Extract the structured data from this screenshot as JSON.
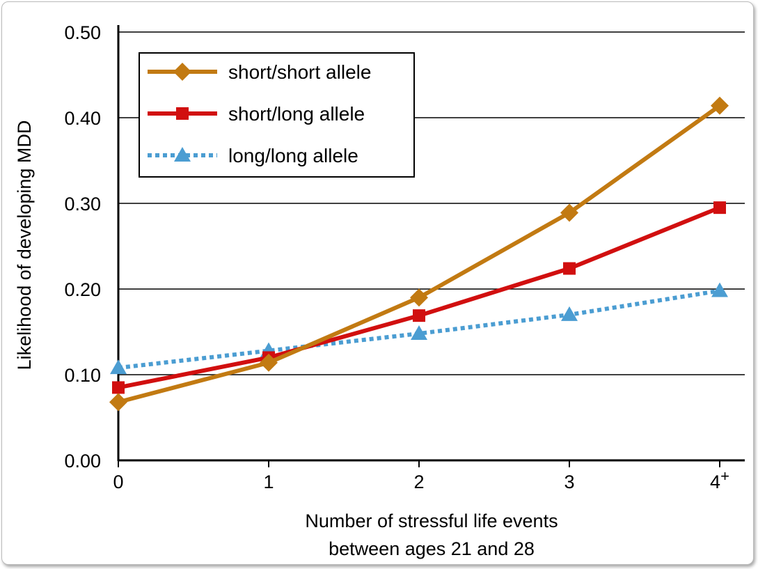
{
  "chart_data": {
    "type": "line",
    "title": "",
    "xlabel": [
      "Number of stressful life events",
      "between ages 21 and 28"
    ],
    "ylabel": "Likelihood of developing MDD",
    "categories": [
      "0",
      "1",
      "2",
      "3",
      "4"
    ],
    "last_category_superscript": "+",
    "yticks": [
      "0.00",
      "0.10",
      "0.20",
      "0.30",
      "0.40",
      "0.50"
    ],
    "ylim": [
      0,
      0.5
    ],
    "grid": true,
    "legend_position": "top-left",
    "series": [
      {
        "name": "short/short allele",
        "color": "#C27A12",
        "marker": "diamond",
        "dash": "solid",
        "values": [
          0.068,
          0.114,
          0.19,
          0.289,
          0.414
        ]
      },
      {
        "name": "short/long allele",
        "color": "#D10F0F",
        "marker": "square",
        "dash": "solid",
        "values": [
          0.085,
          0.12,
          0.169,
          0.224,
          0.295
        ]
      },
      {
        "name": "long/long allele",
        "color": "#4B9DD2",
        "marker": "triangle",
        "dash": "dotted",
        "values": [
          0.108,
          0.128,
          0.148,
          0.17,
          0.198
        ]
      }
    ]
  }
}
